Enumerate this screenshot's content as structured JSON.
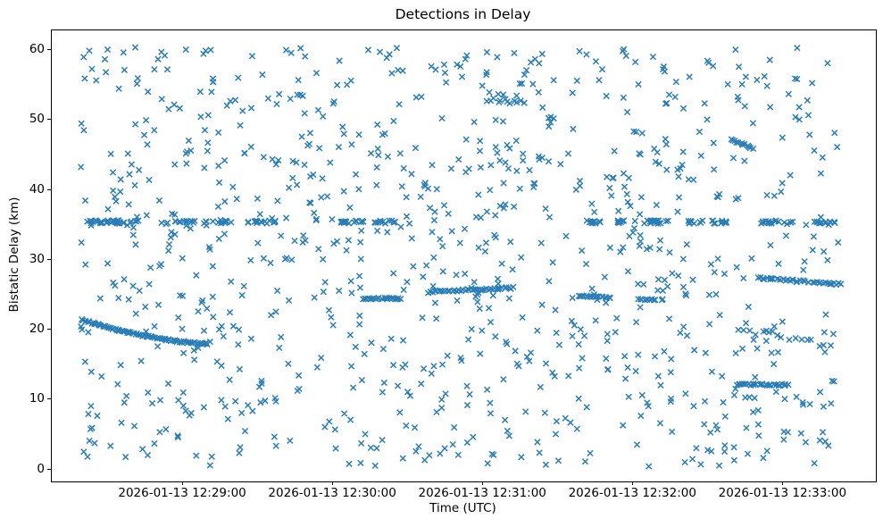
{
  "figure": {
    "title": "Detections in Delay",
    "xlabel": "Time (UTC)",
    "ylabel": "Bistatic Delay (km)"
  },
  "chart_data": {
    "type": "scatter",
    "title": "Detections in Delay",
    "xlabel": "Time (UTC)",
    "ylabel": "Bistatic Delay (km)",
    "marker": "x",
    "marker_color": "#1f77b4",
    "grid": false,
    "legend": "none",
    "time_base_utc": "2026-01-13 12:28:00",
    "x_unit": "seconds after time_base_utc",
    "xlim": [
      7.5,
      337
    ],
    "ylim": [
      -1.7,
      62.8
    ],
    "x_ticks": [
      {
        "t": 60,
        "label": "2026-01-13 12:29:00"
      },
      {
        "t": 120,
        "label": "2026-01-13 12:30:00"
      },
      {
        "t": 180,
        "label": "2026-01-13 12:31:00"
      },
      {
        "t": 240,
        "label": "2026-01-13 12:32:00"
      },
      {
        "t": 300,
        "label": "2026-01-13 12:33:00"
      }
    ],
    "y_ticks": [
      {
        "v": 0,
        "label": "0"
      },
      {
        "v": 10,
        "label": "10"
      },
      {
        "v": 20,
        "label": "20"
      },
      {
        "v": 30,
        "label": "30"
      },
      {
        "v": 40,
        "label": "40"
      },
      {
        "v": 50,
        "label": "50"
      },
      {
        "v": 60,
        "label": "60"
      }
    ],
    "background_clutter": {
      "distribution": "uniform",
      "count": 950,
      "t_range": [
        19,
        322
      ],
      "y_range": [
        0.4,
        60.4
      ],
      "seed": 7
    },
    "range_line": {
      "y": 35.4,
      "y_jitter": 0.22,
      "segments_t_start_t_end_count": [
        [
          20,
          44,
          30
        ],
        [
          51,
          80,
          26
        ],
        [
          86,
          97,
          14
        ],
        [
          122,
          134,
          16
        ],
        [
          136,
          145,
          12
        ],
        [
          221,
          228,
          12
        ],
        [
          232,
          254,
          26
        ],
        [
          261,
          278,
          20
        ],
        [
          291,
          304,
          16
        ],
        [
          311,
          322,
          14
        ]
      ]
    },
    "tracks": [
      {
        "id": "descending-arc-left",
        "t_start": 19.5,
        "t_end": 70,
        "y_start": 21.4,
        "y_end": 18.0,
        "shape": "ease-out",
        "count": 80,
        "y_jitter": 0.12
      },
      {
        "id": "mid-segment-1",
        "t_start": 132,
        "t_end": 147,
        "y_start": 24.4,
        "y_end": 24.5,
        "shape": "linear",
        "count": 22,
        "y_jitter": 0.13
      },
      {
        "id": "mid-segment-2",
        "t_start": 158,
        "t_end": 192,
        "y_start": 25.4,
        "y_end": 26.0,
        "shape": "linear",
        "count": 40,
        "y_jitter": 0.15
      },
      {
        "id": "mid-segment-3",
        "t_start": 218,
        "t_end": 231,
        "y_start": 24.8,
        "y_end": 24.6,
        "shape": "linear",
        "count": 18,
        "y_jitter": 0.13
      },
      {
        "id": "mid-segment-4",
        "t_start": 242,
        "t_end": 249,
        "y_start": 24.4,
        "y_end": 24.3,
        "shape": "linear",
        "count": 10,
        "y_jitter": 0.12
      },
      {
        "id": "right-track",
        "t_start": 290,
        "t_end": 323,
        "y_start": 27.4,
        "y_end": 26.5,
        "shape": "linear",
        "count": 38,
        "y_jitter": 0.15
      },
      {
        "id": "low-dense-clump",
        "t_start": 281,
        "t_end": 302,
        "y_start": 12.2,
        "y_end": 12.1,
        "shape": "linear",
        "count": 26,
        "y_jitter": 0.14
      },
      {
        "id": "loose-descending",
        "t_start": 282,
        "t_end": 319,
        "y_start": 20.2,
        "y_end": 17.6,
        "shape": "linear",
        "count": 16,
        "y_jitter": 0.45
      },
      {
        "id": "mini-streak-high",
        "t_start": 279,
        "t_end": 288,
        "y_start": 47.2,
        "y_end": 45.9,
        "shape": "linear",
        "count": 12,
        "y_jitter": 0.15
      },
      {
        "id": "mini-clump-high",
        "t_start": 183,
        "t_end": 195,
        "y_start": 52.9,
        "y_end": 52.5,
        "shape": "linear",
        "count": 10,
        "y_jitter": 0.3
      }
    ]
  }
}
